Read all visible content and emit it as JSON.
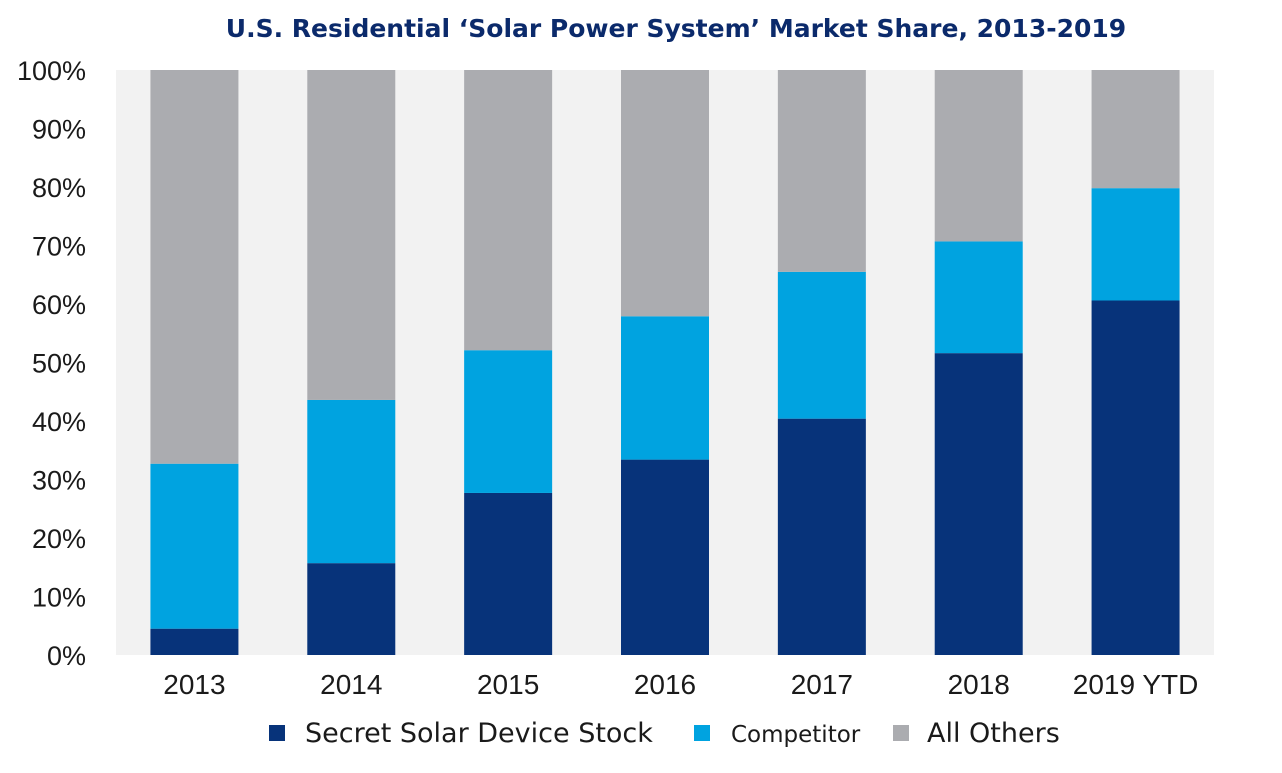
{
  "chart_data": {
    "type": "bar",
    "stacked": true,
    "title": "U.S. Residential ‘Solar Power System’ Market Share, 2013-2019",
    "categories": [
      "2013",
      "2014",
      "2015",
      "2016",
      "2017",
      "2018",
      "2019 YTD"
    ],
    "yticks": [
      "0%",
      "10%",
      "20%",
      "30%",
      "40%",
      "50%",
      "60%",
      "70%",
      "80%",
      "90%",
      "100%"
    ],
    "ylim": [
      0,
      100
    ],
    "grid": false,
    "legend_position": "bottom",
    "series": [
      {
        "name": "Secret Solar Device Stock",
        "color": "#07337a",
        "values": [
          4.5,
          15.7,
          27.7,
          33.4,
          40.4,
          51.6,
          60.6
        ]
      },
      {
        "name": "Competitor",
        "color": "#00a3e0",
        "values": [
          28.2,
          27.9,
          24.4,
          24.5,
          25.1,
          19.1,
          19.2
        ]
      },
      {
        "name": "All Others",
        "color": "#abacb0",
        "values": [
          67.3,
          56.4,
          47.9,
          42.1,
          34.5,
          29.3,
          20.2
        ]
      }
    ],
    "plot_background": "#f2f2f2"
  }
}
